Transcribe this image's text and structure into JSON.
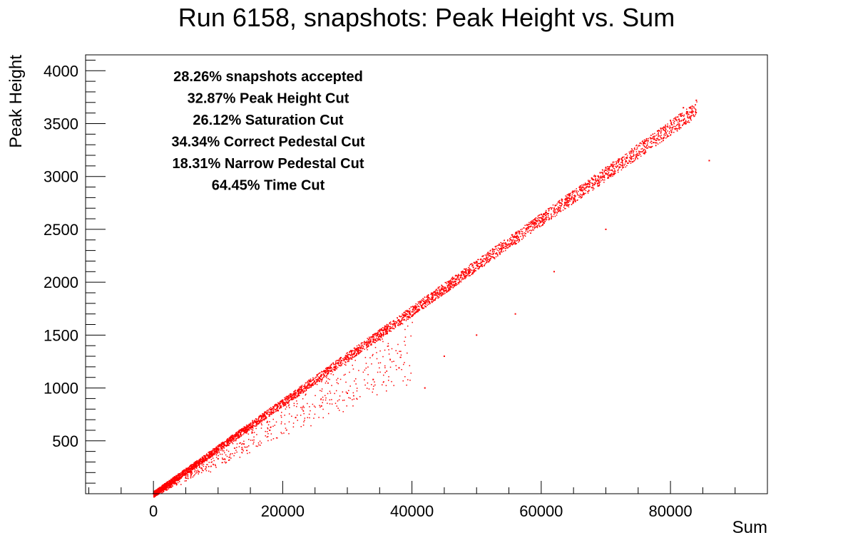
{
  "chart_data": {
    "type": "scatter",
    "title": "Run 6158, snapshots: Peak Height vs. Sum",
    "xlabel": "Sum",
    "ylabel": "Peak Height",
    "xlim": [
      -10500,
      95000
    ],
    "ylim": [
      0,
      4150
    ],
    "x_ticks": [
      0,
      20000,
      40000,
      60000,
      80000
    ],
    "y_ticks": [
      500,
      1000,
      1500,
      2000,
      2500,
      3000,
      3500,
      4000
    ],
    "grid": false,
    "marker_color": "#ff0000",
    "annotations": [
      "28.26% snapshots accepted",
      "32.87% Peak Height Cut",
      "26.12% Saturation Cut",
      "34.34% Correct Pedestal Cut",
      "18.31% Narrow Pedestal Cut",
      "64.45% Time Cut"
    ],
    "series": [
      {
        "points": [
          [
            0,
            0
          ],
          [
            2000,
            80
          ],
          [
            4000,
            170
          ],
          [
            6000,
            250
          ],
          [
            8000,
            340
          ],
          [
            10000,
            420
          ],
          [
            12000,
            510
          ],
          [
            14000,
            590
          ],
          [
            16000,
            680
          ],
          [
            18000,
            770
          ],
          [
            20000,
            850
          ],
          [
            22000,
            940
          ],
          [
            24000,
            1030
          ],
          [
            26000,
            1120
          ],
          [
            28000,
            1200
          ],
          [
            30000,
            1290
          ],
          [
            32000,
            1380
          ],
          [
            34000,
            1460
          ],
          [
            36000,
            1550
          ],
          [
            38000,
            1640
          ],
          [
            40000,
            1720
          ],
          [
            42000,
            1810
          ],
          [
            44000,
            1900
          ],
          [
            46000,
            1990
          ],
          [
            48000,
            2070
          ],
          [
            50000,
            2160
          ],
          [
            52000,
            2250
          ],
          [
            54000,
            2340
          ],
          [
            56000,
            2430
          ],
          [
            58000,
            2520
          ],
          [
            60000,
            2610
          ],
          [
            62000,
            2700
          ],
          [
            64000,
            2790
          ],
          [
            66000,
            2880
          ],
          [
            68000,
            2970
          ],
          [
            70000,
            3060
          ],
          [
            72000,
            3150
          ],
          [
            74000,
            3240
          ],
          [
            76000,
            3330
          ],
          [
            78000,
            3430
          ],
          [
            80000,
            3530
          ],
          [
            82000,
            3650
          ],
          [
            84000,
            3720
          ],
          [
            86000,
            3150
          ],
          [
            10000,
            330
          ],
          [
            14000,
            470
          ],
          [
            18000,
            600
          ],
          [
            22000,
            720
          ],
          [
            26000,
            830
          ],
          [
            30000,
            950
          ],
          [
            34000,
            1080
          ],
          [
            38000,
            1190
          ],
          [
            42000,
            1000
          ],
          [
            45000,
            1300
          ],
          [
            50000,
            1500
          ],
          [
            56000,
            1700
          ],
          [
            62000,
            2100
          ],
          [
            70000,
            2500
          ]
        ]
      }
    ]
  }
}
